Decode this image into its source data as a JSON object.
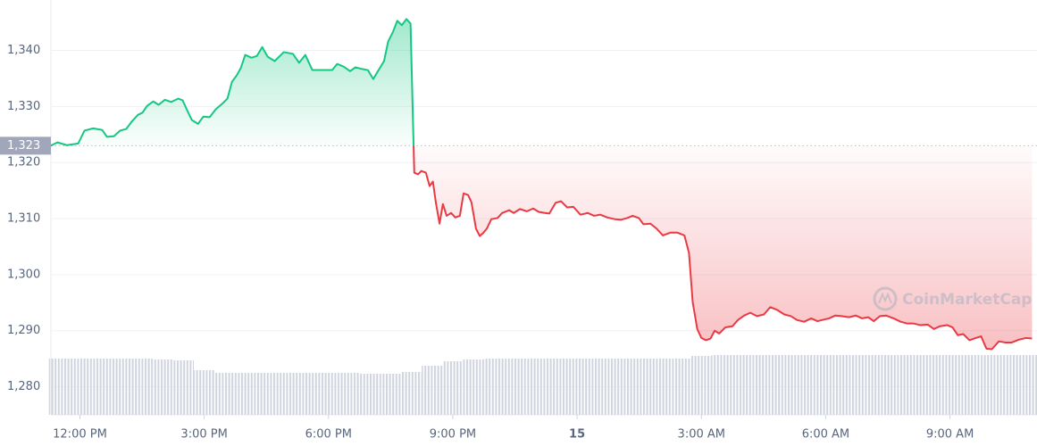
{
  "chart_data": {
    "type": "line",
    "watermark": "CoinMarketCap",
    "reference": {
      "value": 1323,
      "label": "1,323"
    },
    "xlim": [
      11.3,
      35.1
    ],
    "ylim": [
      1275,
      1349
    ],
    "xticks": [
      {
        "value": 12,
        "label": "12:00 PM"
      },
      {
        "value": 15,
        "label": "3:00 PM"
      },
      {
        "value": 18,
        "label": "6:00 PM"
      },
      {
        "value": 21,
        "label": "9:00 PM"
      },
      {
        "value": 24,
        "label": "15"
      },
      {
        "value": 27,
        "label": "3:00 AM"
      },
      {
        "value": 30,
        "label": "6:00 AM"
      },
      {
        "value": 33,
        "label": "9:00 AM"
      }
    ],
    "yticks": [
      {
        "value": 1280,
        "label": "1,280"
      },
      {
        "value": 1290,
        "label": "1,290"
      },
      {
        "value": 1300,
        "label": "1,300"
      },
      {
        "value": 1310,
        "label": "1,310"
      },
      {
        "value": 1320,
        "label": "1,320"
      },
      {
        "value": 1330,
        "label": "1,330"
      },
      {
        "value": 1340,
        "label": "1,340"
      }
    ],
    "grid": true,
    "colors": {
      "up": "#16c784",
      "down": "#ea3943",
      "volume": "#cfd4de"
    },
    "price": {
      "x": [
        11.29,
        11.46,
        11.68,
        11.96,
        12.11,
        12.32,
        12.54,
        12.65,
        12.82,
        12.97,
        13.12,
        13.25,
        13.4,
        13.51,
        13.62,
        13.77,
        13.9,
        14.05,
        14.2,
        14.37,
        14.48,
        14.59,
        14.7,
        14.85,
        14.98,
        15.13,
        15.28,
        15.45,
        15.56,
        15.67,
        15.78,
        15.88,
        15.99,
        16.14,
        16.27,
        16.4,
        16.53,
        16.7,
        16.92,
        17.14,
        17.29,
        17.44,
        17.61,
        17.78,
        17.93,
        18.09,
        18.21,
        18.37,
        18.52,
        18.65,
        18.8,
        18.95,
        19.08,
        19.16,
        19.34,
        19.44,
        19.55,
        19.66,
        19.77,
        19.88,
        19.98,
        20.07,
        20.16,
        20.24,
        20.35,
        20.44,
        20.52,
        20.59,
        20.68,
        20.76,
        20.85,
        20.96,
        21.06,
        21.17,
        21.26,
        21.37,
        21.45,
        21.56,
        21.65,
        21.73,
        21.82,
        21.93,
        22.08,
        22.19,
        22.36,
        22.47,
        22.62,
        22.79,
        22.94,
        23.07,
        23.22,
        23.33,
        23.48,
        23.61,
        23.76,
        23.91,
        24.08,
        24.26,
        24.41,
        24.56,
        24.73,
        24.91,
        25.06,
        25.21,
        25.34,
        25.49,
        25.6,
        25.77,
        25.92,
        26.07,
        26.25,
        26.42,
        26.59,
        26.7,
        26.79,
        26.9,
        27.0,
        27.11,
        27.22,
        27.32,
        27.43,
        27.58,
        27.75,
        27.88,
        28.03,
        28.18,
        28.34,
        28.51,
        28.66,
        28.83,
        29.0,
        29.16,
        29.31,
        29.48,
        29.65,
        29.8,
        29.91,
        30.08,
        30.23,
        30.38,
        30.56,
        30.73,
        30.88,
        31.03,
        31.16,
        31.31,
        31.46,
        31.64,
        31.81,
        31.96,
        32.11,
        32.28,
        32.46,
        32.61,
        32.76,
        32.93,
        33.06,
        33.19,
        33.32,
        33.47,
        33.62,
        33.75,
        33.88,
        34.01,
        34.18,
        34.33,
        34.49,
        34.66,
        34.83,
        34.98
      ],
      "values": [
        1323.0,
        1323.6,
        1323.1,
        1323.4,
        1325.7,
        1326.1,
        1325.8,
        1324.6,
        1324.7,
        1325.7,
        1326.0,
        1327.3,
        1328.5,
        1328.9,
        1330.1,
        1330.9,
        1330.3,
        1331.2,
        1330.8,
        1331.4,
        1331.1,
        1329.3,
        1327.6,
        1326.9,
        1328.2,
        1328.1,
        1329.5,
        1330.6,
        1331.4,
        1334.4,
        1335.5,
        1336.8,
        1339.2,
        1338.7,
        1339.0,
        1340.6,
        1338.9,
        1338.1,
        1339.7,
        1339.4,
        1337.8,
        1339.2,
        1336.5,
        1336.5,
        1336.5,
        1336.5,
        1337.6,
        1337.1,
        1336.3,
        1337.0,
        1336.7,
        1336.5,
        1334.9,
        1335.9,
        1338.1,
        1341.6,
        1343.2,
        1345.3,
        1344.5,
        1345.6,
        1344.8,
        1318.2,
        1317.9,
        1318.5,
        1318.2,
        1315.8,
        1316.6,
        1312.9,
        1309.1,
        1312.6,
        1310.5,
        1311.0,
        1310.2,
        1310.5,
        1314.5,
        1314.2,
        1312.9,
        1308.2,
        1306.9,
        1307.4,
        1308.2,
        1309.9,
        1310.1,
        1311.0,
        1311.5,
        1311.0,
        1311.7,
        1311.3,
        1311.8,
        1311.2,
        1311.0,
        1310.9,
        1312.8,
        1313.1,
        1312.0,
        1312.1,
        1310.7,
        1311.0,
        1310.5,
        1310.7,
        1310.2,
        1309.9,
        1309.8,
        1310.1,
        1310.5,
        1310.1,
        1309.0,
        1309.1,
        1308.2,
        1307.0,
        1307.5,
        1307.5,
        1307.0,
        1303.9,
        1295.1,
        1290.3,
        1288.7,
        1288.3,
        1288.6,
        1290.0,
        1289.5,
        1290.6,
        1290.8,
        1291.9,
        1292.7,
        1293.2,
        1292.6,
        1292.9,
        1294.2,
        1293.7,
        1292.9,
        1292.6,
        1291.9,
        1291.6,
        1292.2,
        1291.7,
        1291.9,
        1292.2,
        1292.7,
        1292.6,
        1292.4,
        1292.7,
        1292.2,
        1292.4,
        1291.7,
        1292.6,
        1292.7,
        1292.2,
        1291.6,
        1291.3,
        1291.3,
        1291.0,
        1291.1,
        1290.3,
        1290.8,
        1291.0,
        1290.6,
        1289.2,
        1289.4,
        1288.3,
        1288.7,
        1289.0,
        1286.8,
        1286.7,
        1288.1,
        1287.9,
        1287.9,
        1288.4,
        1288.7,
        1288.6
      ]
    },
    "volume": {
      "x": [
        11.5,
        12,
        12.5,
        13,
        13.5,
        14,
        14.5,
        15,
        15.5,
        16,
        16.5,
        17,
        17.5,
        18,
        18.5,
        19,
        19.5,
        20,
        20.5,
        21,
        21.5,
        22,
        22.5,
        23,
        23.5,
        24,
        24.5,
        25,
        25.5,
        26,
        26.5,
        27,
        27.5,
        28,
        28.5,
        29,
        29.5,
        30,
        30.5,
        31,
        31.5,
        32,
        32.5,
        33,
        33.5,
        34,
        34.5,
        35
      ],
      "values": [
        63,
        63,
        63,
        63,
        63,
        62,
        61,
        50,
        47,
        47,
        47,
        47,
        47,
        47,
        47,
        46,
        46,
        48,
        55,
        60,
        62,
        63,
        63,
        63,
        63,
        63,
        63,
        63,
        63,
        63,
        63,
        66,
        67,
        67,
        67,
        67,
        67,
        67,
        67,
        67,
        67,
        67,
        67,
        67,
        67,
        67,
        67,
        67
      ]
    }
  }
}
